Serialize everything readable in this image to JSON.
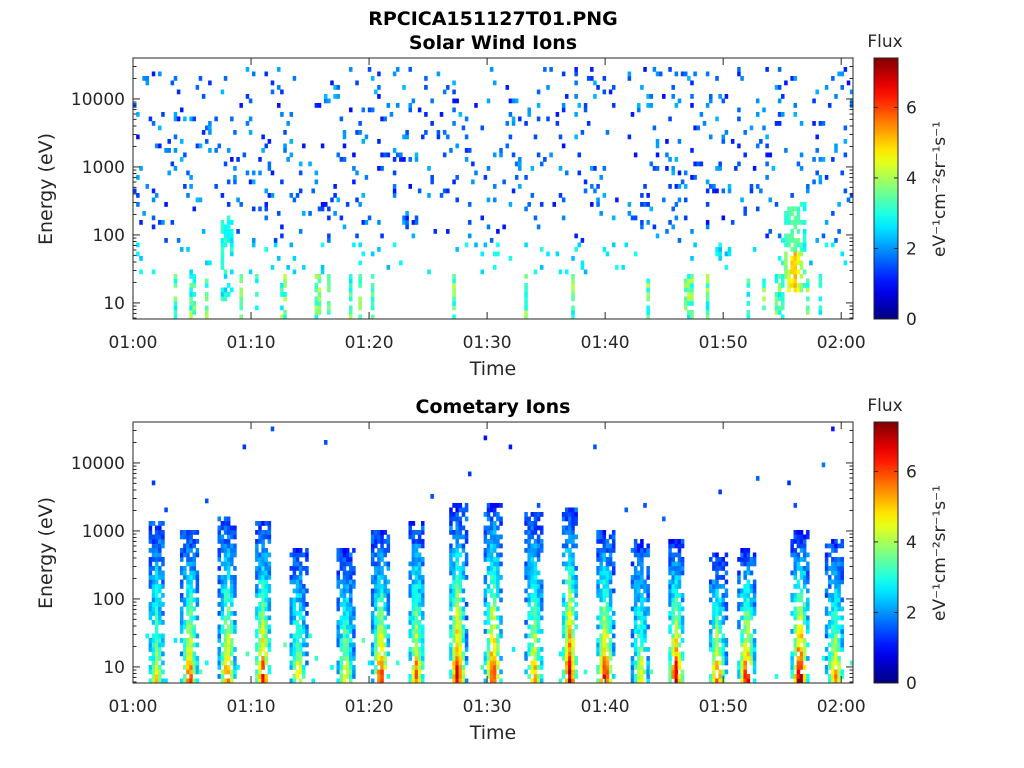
{
  "figure_title": "RPCICA151127T01.PNG",
  "colors": {
    "colormap": "jet",
    "axes_edge": "#262626",
    "background": "#ffffff"
  },
  "chart_data": [
    {
      "type": "heatmap",
      "title": "Solar Wind Ions",
      "xlabel": "Time",
      "ylabel": "Energy (eV)",
      "x_range": [
        "01:00",
        "02:01"
      ],
      "x_ticks": [
        "01:00",
        "01:10",
        "01:20",
        "01:30",
        "01:40",
        "01:50",
        "02:00"
      ],
      "y_scale": "log",
      "y_range": [
        5.8,
        40000
      ],
      "y_ticks": [
        10,
        100,
        1000,
        10000
      ],
      "y_tick_labels": [
        "10",
        "100",
        "1000",
        "10000"
      ],
      "colorbar": {
        "title": "Flux",
        "label": "eV⁻¹cm⁻²sr⁻¹s⁻¹",
        "range": [
          0,
          7.4
        ],
        "ticks": [
          0,
          2,
          4,
          6
        ],
        "tick_labels": [
          "0",
          "2",
          "4",
          "6"
        ],
        "colormap": "jet"
      },
      "features": [
        {
          "description": "sparse low-flux speckle across 100 eV - 30 keV",
          "flux_range": [
            1,
            2.5
          ]
        },
        {
          "description": "periodic vertical streaks at lowest energies (5.8-25 eV)",
          "flux_range": [
            2.5,
            4.5
          ]
        },
        {
          "time": "01:56",
          "energy_range": [
            15,
            300
          ],
          "peak_flux": 5.3
        },
        {
          "time": "01:08",
          "energy_range": [
            10,
            200
          ],
          "peak_flux": 3.5
        }
      ]
    },
    {
      "type": "heatmap",
      "title": "Cometary Ions",
      "xlabel": "Time",
      "ylabel": "Energy (eV)",
      "x_range": [
        "01:00",
        "02:01"
      ],
      "x_ticks": [
        "01:00",
        "01:10",
        "01:20",
        "01:30",
        "01:40",
        "01:50",
        "02:00"
      ],
      "y_scale": "log",
      "y_range": [
        5.8,
        40000
      ],
      "y_ticks": [
        10,
        100,
        1000,
        10000
      ],
      "y_tick_labels": [
        "10",
        "100",
        "1000",
        "10000"
      ],
      "colorbar": {
        "title": "Flux",
        "label": "eV⁻¹cm⁻²sr⁻¹s⁻¹",
        "range": [
          0,
          7.4
        ],
        "ticks": [
          0,
          2,
          4,
          6
        ],
        "tick_labels": [
          "0",
          "2",
          "4",
          "6"
        ],
        "colormap": "jet"
      },
      "bursts": [
        {
          "time": "01:02",
          "top_energy": 1000,
          "peak_flux": 4.2
        },
        {
          "time": "01:04.8",
          "top_energy": 700,
          "peak_flux": 5.8
        },
        {
          "time": "01:08",
          "top_energy": 1100,
          "peak_flux": 5.6
        },
        {
          "time": "01:11",
          "top_energy": 1000,
          "peak_flux": 5.9
        },
        {
          "time": "01:14",
          "top_energy": 400,
          "peak_flux": 4.6
        },
        {
          "time": "01:18",
          "top_energy": 400,
          "peak_flux": 4.6
        },
        {
          "time": "01:21",
          "top_energy": 700,
          "peak_flux": 6.1
        },
        {
          "time": "01:24",
          "top_energy": 900,
          "peak_flux": 5.3
        },
        {
          "time": "01:27.5",
          "top_energy": 1600,
          "peak_flux": 6.5
        },
        {
          "time": "01:30.5",
          "top_energy": 1800,
          "peak_flux": 6.3
        },
        {
          "time": "01:34",
          "top_energy": 1200,
          "peak_flux": 5.2
        },
        {
          "time": "01:37",
          "top_energy": 1500,
          "peak_flux": 6.6
        },
        {
          "time": "01:40",
          "top_energy": 700,
          "peak_flux": 6.5
        },
        {
          "time": "01:43",
          "top_energy": 500,
          "peak_flux": 4.5
        },
        {
          "time": "01:46",
          "top_energy": 500,
          "peak_flux": 6.4
        },
        {
          "time": "01:49.5",
          "top_energy": 300,
          "peak_flux": 5.9
        },
        {
          "time": "01:52",
          "top_energy": 400,
          "peak_flux": 6.5
        },
        {
          "time": "01:56.5",
          "top_energy": 700,
          "peak_flux": 7.3
        },
        {
          "time": "01:59.5",
          "top_energy": 500,
          "peak_flux": 5.1
        }
      ]
    }
  ]
}
